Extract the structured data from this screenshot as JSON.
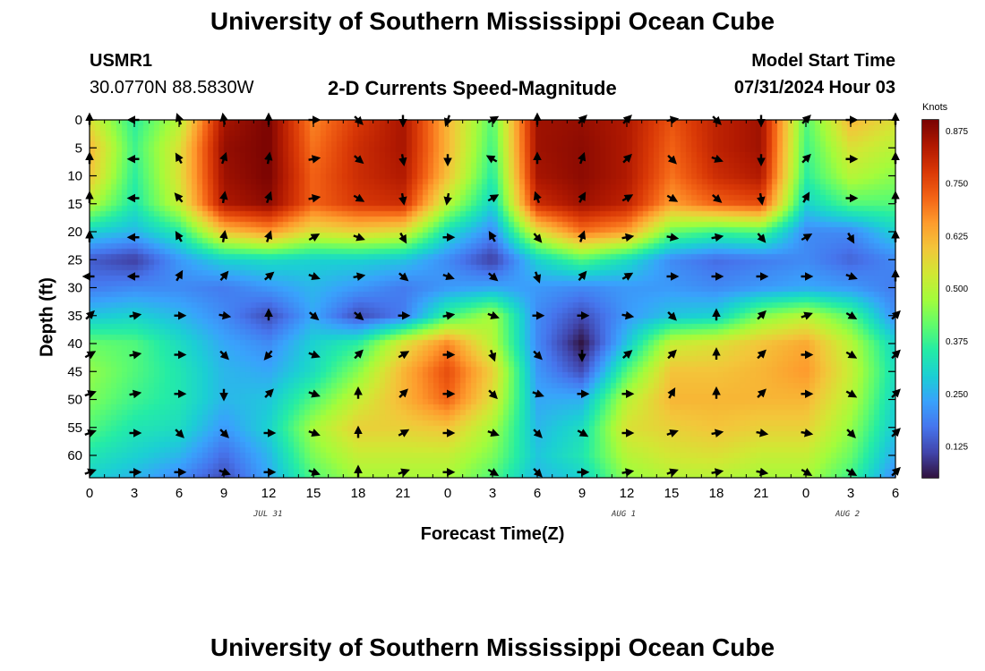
{
  "header": {
    "title": "University of Southern Mississippi Ocean Cube",
    "station_id": "USMR1",
    "coordinates": "30.0770N  88.5830W",
    "plot_name": "2-D Currents Speed-Magnitude",
    "model_start_label": "Model Start Time",
    "model_start_value": "07/31/2024 Hour 03"
  },
  "footer": {
    "title": "University of Southern Mississippi Ocean Cube"
  },
  "chart_data": {
    "type": "heatmap",
    "title": "2-D Currents Speed-Magnitude",
    "xlabel": "Forecast Time(Z)",
    "ylabel": "Depth (ft)",
    "x_ticks": [
      "0",
      "3",
      "6",
      "9",
      "12",
      "15",
      "18",
      "21",
      "0",
      "3",
      "6",
      "9",
      "12",
      "15",
      "18",
      "21",
      "0",
      "3",
      "6"
    ],
    "x_range_hours": [
      0,
      54
    ],
    "date_labels": [
      {
        "text": "JUL 31",
        "hour": 12
      },
      {
        "text": "AUG 1",
        "hour": 36
      },
      {
        "text": "AUG 2",
        "hour": 51
      }
    ],
    "y_ticks": [
      0,
      5,
      10,
      15,
      20,
      25,
      30,
      35,
      40,
      45,
      50,
      55,
      60
    ],
    "y_range_ft": [
      0,
      64
    ],
    "y_reversed": true,
    "colorbar": {
      "label": "Knots",
      "min": 0.05,
      "max": 0.9,
      "ticks": [
        "0.875",
        "0.750",
        "0.625",
        "0.500",
        "0.375",
        "0.250",
        "0.125"
      ],
      "colors": [
        "#30123b",
        "#4145ab",
        "#4675ed",
        "#39a2fc",
        "#1bcfd4",
        "#24eca6",
        "#61fc6c",
        "#a4fc3b",
        "#d1e834",
        "#f3c63a",
        "#fe9b2d",
        "#f36315",
        "#d93806",
        "#b11901",
        "#7a0402"
      ]
    },
    "speed_hours": [
      0,
      3,
      6,
      9,
      12,
      15,
      18,
      21,
      24,
      27,
      30,
      33,
      36,
      39,
      42,
      45,
      48,
      51,
      54
    ],
    "speed_depths_ft": [
      0,
      5,
      10,
      15,
      20,
      25,
      30,
      35,
      40,
      45,
      50,
      55,
      60,
      64
    ],
    "speed_knots": [
      [
        0.55,
        0.36,
        0.5,
        0.85,
        0.9,
        0.68,
        0.78,
        0.85,
        0.62,
        0.4,
        0.86,
        0.87,
        0.84,
        0.74,
        0.82,
        0.86,
        0.4,
        0.62,
        0.55
      ],
      [
        0.62,
        0.38,
        0.55,
        0.87,
        0.9,
        0.7,
        0.8,
        0.85,
        0.62,
        0.38,
        0.86,
        0.88,
        0.84,
        0.72,
        0.82,
        0.86,
        0.38,
        0.55,
        0.5
      ],
      [
        0.6,
        0.36,
        0.55,
        0.86,
        0.9,
        0.72,
        0.8,
        0.84,
        0.6,
        0.35,
        0.85,
        0.88,
        0.84,
        0.7,
        0.8,
        0.84,
        0.36,
        0.5,
        0.45
      ],
      [
        0.5,
        0.34,
        0.52,
        0.84,
        0.88,
        0.72,
        0.78,
        0.8,
        0.5,
        0.3,
        0.8,
        0.86,
        0.82,
        0.65,
        0.72,
        0.75,
        0.3,
        0.4,
        0.4
      ],
      [
        0.3,
        0.26,
        0.35,
        0.6,
        0.66,
        0.55,
        0.58,
        0.55,
        0.32,
        0.2,
        0.55,
        0.7,
        0.65,
        0.42,
        0.38,
        0.4,
        0.2,
        0.2,
        0.3
      ],
      [
        0.14,
        0.1,
        0.22,
        0.3,
        0.32,
        0.3,
        0.3,
        0.28,
        0.2,
        0.1,
        0.3,
        0.4,
        0.32,
        0.2,
        0.16,
        0.18,
        0.2,
        0.15,
        0.2
      ],
      [
        0.18,
        0.2,
        0.2,
        0.18,
        0.22,
        0.26,
        0.22,
        0.18,
        0.22,
        0.24,
        0.22,
        0.2,
        0.22,
        0.22,
        0.2,
        0.22,
        0.24,
        0.22,
        0.18
      ],
      [
        0.28,
        0.3,
        0.26,
        0.2,
        0.12,
        0.24,
        0.12,
        0.18,
        0.38,
        0.48,
        0.2,
        0.12,
        0.22,
        0.28,
        0.3,
        0.44,
        0.5,
        0.4,
        0.2
      ],
      [
        0.42,
        0.4,
        0.32,
        0.24,
        0.2,
        0.3,
        0.36,
        0.55,
        0.68,
        0.5,
        0.2,
        0.05,
        0.28,
        0.52,
        0.55,
        0.6,
        0.64,
        0.5,
        0.3
      ],
      [
        0.46,
        0.4,
        0.34,
        0.26,
        0.24,
        0.32,
        0.45,
        0.62,
        0.75,
        0.58,
        0.22,
        0.12,
        0.4,
        0.6,
        0.6,
        0.62,
        0.66,
        0.52,
        0.32
      ],
      [
        0.44,
        0.38,
        0.34,
        0.26,
        0.28,
        0.4,
        0.52,
        0.62,
        0.72,
        0.55,
        0.24,
        0.25,
        0.5,
        0.62,
        0.62,
        0.62,
        0.62,
        0.5,
        0.3
      ],
      [
        0.4,
        0.34,
        0.32,
        0.22,
        0.3,
        0.48,
        0.58,
        0.58,
        0.6,
        0.48,
        0.26,
        0.32,
        0.55,
        0.58,
        0.6,
        0.58,
        0.58,
        0.46,
        0.28
      ],
      [
        0.34,
        0.3,
        0.26,
        0.16,
        0.26,
        0.44,
        0.52,
        0.52,
        0.52,
        0.44,
        0.28,
        0.34,
        0.5,
        0.54,
        0.55,
        0.52,
        0.52,
        0.42,
        0.24
      ],
      [
        0.3,
        0.26,
        0.2,
        0.12,
        0.24,
        0.4,
        0.48,
        0.48,
        0.48,
        0.4,
        0.26,
        0.3,
        0.46,
        0.5,
        0.5,
        0.48,
        0.48,
        0.38,
        0.2
      ]
    ],
    "vector_hours": [
      0,
      3,
      6,
      9,
      12,
      15,
      18,
      21,
      24,
      27,
      30,
      33,
      36,
      39,
      42,
      45,
      48,
      51,
      54
    ],
    "vector_depths_ft": [
      0,
      7,
      14,
      21,
      28,
      35,
      42,
      49,
      56,
      63
    ],
    "vector_directions_deg": [
      [
        0,
        270,
        340,
        350,
        0,
        90,
        135,
        180,
        200,
        60,
        0,
        45,
        45,
        80,
        135,
        180,
        45,
        90,
        0
      ],
      [
        0,
        270,
        330,
        20,
        10,
        80,
        130,
        170,
        180,
        300,
        0,
        20,
        45,
        135,
        110,
        180,
        45,
        90,
        0
      ],
      [
        0,
        270,
        320,
        10,
        20,
        80,
        120,
        170,
        190,
        60,
        340,
        30,
        60,
        120,
        130,
        170,
        30,
        90,
        0
      ],
      [
        0,
        270,
        330,
        10,
        20,
        60,
        110,
        150,
        90,
        330,
        140,
        20,
        80,
        100,
        80,
        140,
        60,
        150,
        0
      ],
      [
        270,
        270,
        30,
        40,
        50,
        110,
        80,
        130,
        110,
        130,
        160,
        40,
        60,
        90,
        90,
        90,
        90,
        110,
        0
      ],
      [
        45,
        80,
        90,
        100,
        0,
        130,
        130,
        90,
        80,
        110,
        90,
        90,
        100,
        135,
        0,
        45,
        70,
        120,
        45
      ],
      [
        60,
        80,
        90,
        135,
        220,
        110,
        45,
        60,
        90,
        160,
        135,
        180,
        50,
        45,
        0,
        45,
        90,
        120,
        45
      ],
      [
        70,
        80,
        90,
        180,
        45,
        110,
        0,
        45,
        90,
        135,
        110,
        90,
        90,
        30,
        0,
        45,
        90,
        120,
        45
      ],
      [
        70,
        90,
        135,
        135,
        90,
        110,
        0,
        60,
        90,
        110,
        135,
        120,
        90,
        70,
        80,
        100,
        100,
        135,
        45
      ],
      [
        70,
        90,
        90,
        110,
        90,
        110,
        0,
        70,
        90,
        120,
        135,
        90,
        80,
        70,
        80,
        100,
        120,
        120,
        45
      ]
    ]
  }
}
